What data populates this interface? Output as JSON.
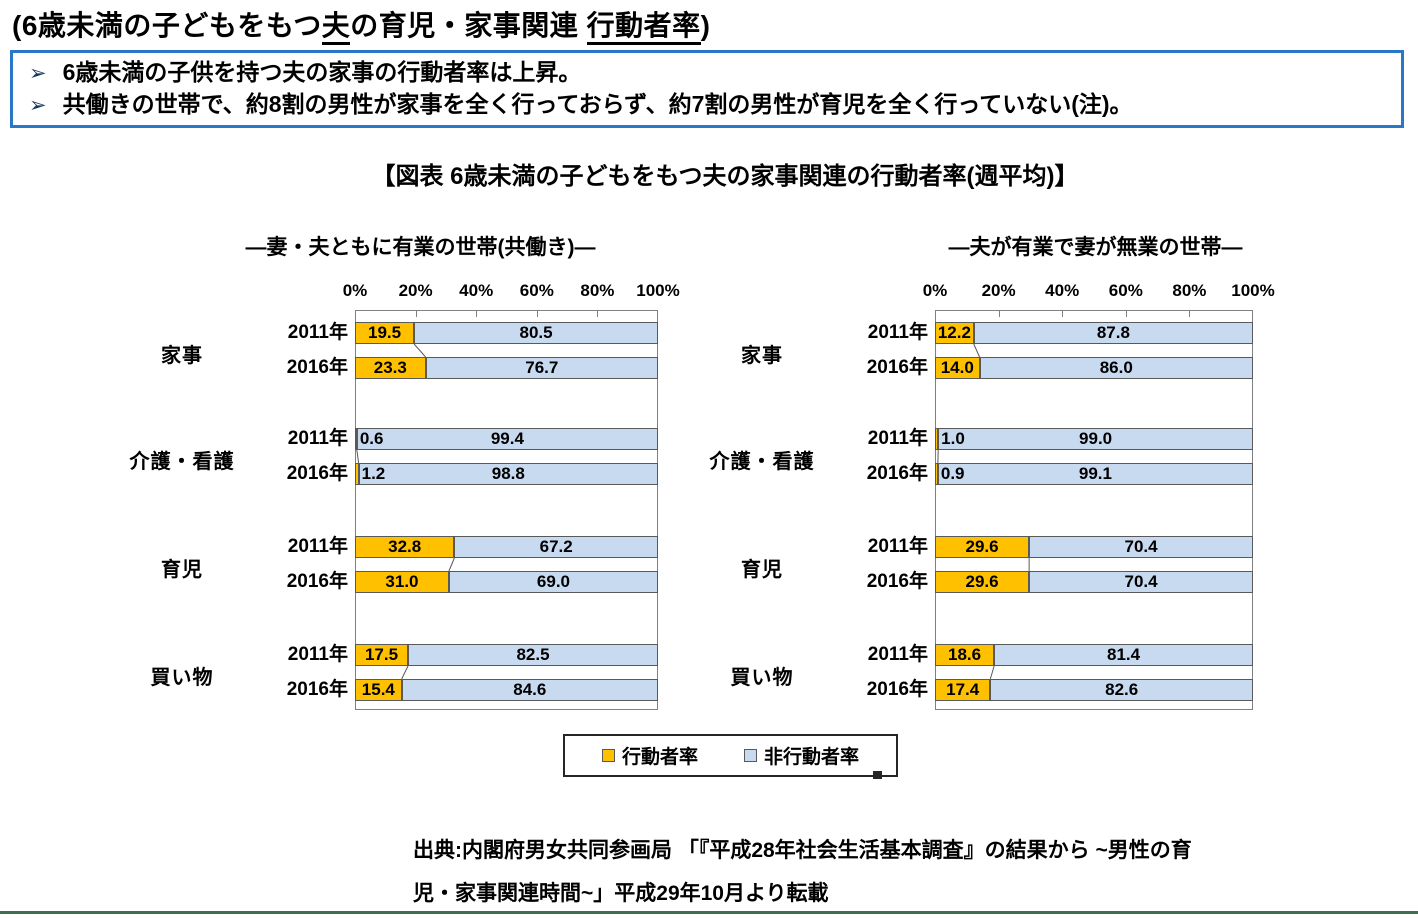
{
  "page": {
    "title": {
      "parts": [
        {
          "text": "(6歳未満の子どもをもつ",
          "underline": false
        },
        {
          "text": "夫",
          "underline": true
        },
        {
          "text": "の育児・家事関連 ",
          "underline": false
        },
        {
          "text": "行動者率",
          "underline": true
        },
        {
          "text": ")",
          "underline": false
        }
      ]
    },
    "callout": {
      "bullet_glyph": "➢",
      "items": [
        "6歳未満の子供を持つ夫の家事の行動者率は上昇。",
        "共働きの世帯で、約8割の男性が家事を全く行っておらず、約7割の男性が育児を全く行っていない(注)。"
      ]
    },
    "figure_title": "【図表 6歳未満の子どもをもつ夫の家事関連の行動者率(週平均)】",
    "source": {
      "lines": [
        "出典:内閣府男女共同参画局 「『平成28年社会生活基本調査』の結果から ~男性の育",
        "児・家事関連時間~」平成29年10月より転載"
      ]
    },
    "colors": {
      "active": "#FFC000",
      "inactive": "#C8DAF0",
      "bar_border": "#595959",
      "plot_border": "#808080",
      "callout_border": "#2878C8",
      "bullet": "#17365D",
      "bottom_rule": "#3E6F4F"
    }
  },
  "chart_data": {
    "type": "bar",
    "orientation": "horizontal-stacked",
    "title": "【図表 6歳未満の子どもをもつ夫の家事関連の行動者率(週平均)】",
    "x_ticks": [
      "0%",
      "20%",
      "40%",
      "60%",
      "80%",
      "100%"
    ],
    "xlim": [
      0,
      100
    ],
    "unit": "%",
    "grid": false,
    "legend_position": "bottom-center",
    "legend": [
      {
        "label": "行動者率",
        "color": "#FFC000"
      },
      {
        "label": "非行動者率",
        "color": "#C8DAF0"
      }
    ],
    "categories": [
      "家事",
      "介護・看護",
      "育児",
      "買い物"
    ],
    "years": [
      "2011年",
      "2016年"
    ],
    "panels": [
      {
        "title": "―妻・夫ともに有業の世帯(共働き)―",
        "groups": [
          {
            "category": "家事",
            "rows": [
              {
                "year": "2011年",
                "active": "19.5",
                "inactive": "80.5"
              },
              {
                "year": "2016年",
                "active": "23.3",
                "inactive": "76.7"
              }
            ]
          },
          {
            "category": "介護・看護",
            "rows": [
              {
                "year": "2011年",
                "active": "0.6",
                "inactive": "99.4"
              },
              {
                "year": "2016年",
                "active": "1.2",
                "inactive": "98.8"
              }
            ]
          },
          {
            "category": "育児",
            "rows": [
              {
                "year": "2011年",
                "active": "32.8",
                "inactive": "67.2"
              },
              {
                "year": "2016年",
                "active": "31.0",
                "inactive": "69.0"
              }
            ]
          },
          {
            "category": "買い物",
            "rows": [
              {
                "year": "2011年",
                "active": "17.5",
                "inactive": "82.5"
              },
              {
                "year": "2016年",
                "active": "15.4",
                "inactive": "84.6"
              }
            ]
          }
        ]
      },
      {
        "title": "―夫が有業で妻が無業の世帯―",
        "groups": [
          {
            "category": "家事",
            "rows": [
              {
                "year": "2011年",
                "active": "12.2",
                "inactive": "87.8"
              },
              {
                "year": "2016年",
                "active": "14.0",
                "inactive": "86.0"
              }
            ]
          },
          {
            "category": "介護・看護",
            "rows": [
              {
                "year": "2011年",
                "active": "1.0",
                "inactive": "99.0"
              },
              {
                "year": "2016年",
                "active": "0.9",
                "inactive": "99.1"
              }
            ]
          },
          {
            "category": "育児",
            "rows": [
              {
                "year": "2011年",
                "active": "29.6",
                "inactive": "70.4"
              },
              {
                "year": "2016年",
                "active": "29.6",
                "inactive": "70.4"
              }
            ]
          },
          {
            "category": "買い物",
            "rows": [
              {
                "year": "2011年",
                "active": "18.6",
                "inactive": "81.4"
              },
              {
                "year": "2016年",
                "active": "17.4",
                "inactive": "82.6"
              }
            ]
          }
        ]
      }
    ]
  }
}
